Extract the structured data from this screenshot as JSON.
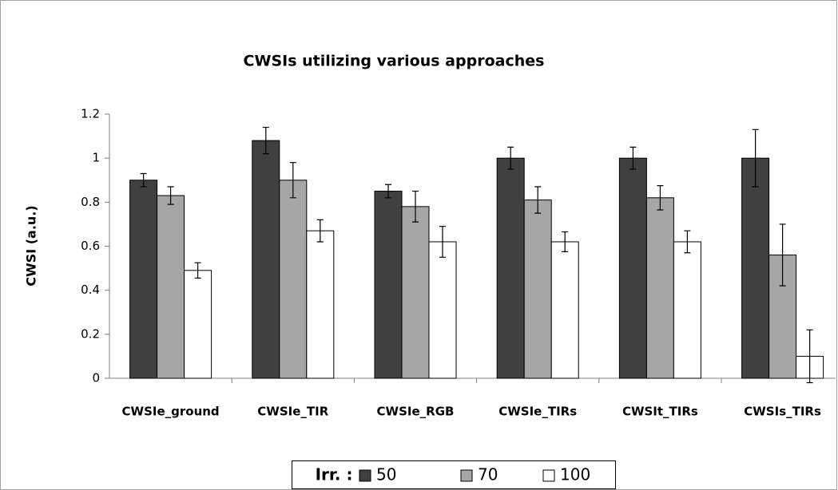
{
  "chart_data": {
    "type": "bar",
    "title": "CWSIs utilizing  various approaches",
    "y_label": "CWSI (a.u.)",
    "categories": [
      "CWSIe_ground",
      "CWSIe_TIR",
      "CWSIe_RGB",
      "CWSIe_TIRs",
      "CWSIt_TIRs",
      "CWSIs_TIRs"
    ],
    "legend_title": "Irr. :",
    "series": [
      {
        "name": "50",
        "color": "#404040",
        "values": [
          0.9,
          1.08,
          0.85,
          1.0,
          1.0,
          1.0
        ],
        "errors": [
          0.03,
          0.06,
          0.03,
          0.05,
          0.05,
          0.13
        ]
      },
      {
        "name": "70",
        "color": "#a6a6a6",
        "values": [
          0.83,
          0.9,
          0.78,
          0.81,
          0.82,
          0.56
        ],
        "errors": [
          0.04,
          0.08,
          0.07,
          0.06,
          0.055,
          0.14
        ]
      },
      {
        "name": "100",
        "color": "#ffffff",
        "values": [
          0.49,
          0.67,
          0.62,
          0.62,
          0.62,
          0.1
        ],
        "errors": [
          0.035,
          0.05,
          0.07,
          0.045,
          0.05,
          0.12
        ]
      }
    ],
    "ylim": [
      0,
      1.2
    ],
    "yticks": [
      0,
      0.2,
      0.4,
      0.6,
      0.8,
      1,
      1.2
    ],
    "grid": false,
    "legend": "bottom"
  }
}
